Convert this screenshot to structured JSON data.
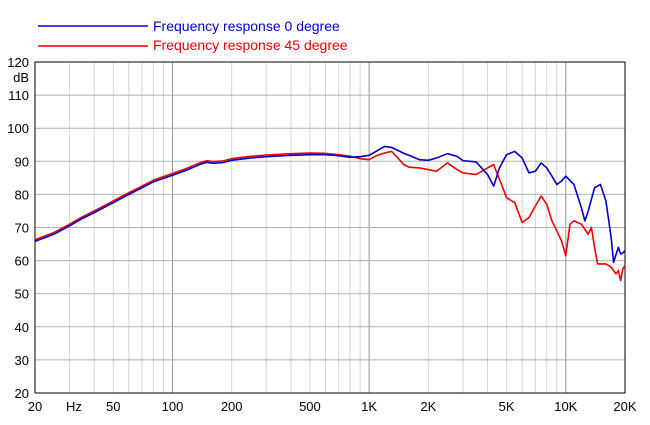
{
  "chart_data": {
    "type": "line",
    "xscale": "log",
    "xlim": [
      20,
      20000
    ],
    "ylim": [
      20,
      120
    ],
    "grid": true,
    "ylabel": "dB",
    "xunit_label": "Hz",
    "xticks": [
      {
        "value": 20,
        "label": "20"
      },
      {
        "value": 50,
        "label": "50"
      },
      {
        "value": 100,
        "label": "100"
      },
      {
        "value": 200,
        "label": "200"
      },
      {
        "value": 500,
        "label": "500"
      },
      {
        "value": 1000,
        "label": "1K"
      },
      {
        "value": 2000,
        "label": "2K"
      },
      {
        "value": 5000,
        "label": "5K"
      },
      {
        "value": 10000,
        "label": "10K"
      },
      {
        "value": 20000,
        "label": "20K"
      }
    ],
    "yticks": [
      20,
      30,
      40,
      50,
      60,
      70,
      80,
      90,
      100,
      110,
      120
    ],
    "legend_position": "top-left",
    "series": [
      {
        "name": "Frequency response 0 degree",
        "color": "#0000cc",
        "points": [
          [
            20,
            65.8
          ],
          [
            25,
            68
          ],
          [
            30,
            70.5
          ],
          [
            35,
            72.8
          ],
          [
            40,
            74.5
          ],
          [
            50,
            77.5
          ],
          [
            60,
            80
          ],
          [
            70,
            82
          ],
          [
            80,
            83.8
          ],
          [
            100,
            85.8
          ],
          [
            120,
            87.5
          ],
          [
            140,
            89.2
          ],
          [
            150,
            89.7
          ],
          [
            160,
            89.4
          ],
          [
            180,
            89.6
          ],
          [
            200,
            90.3
          ],
          [
            250,
            91
          ],
          [
            300,
            91.4
          ],
          [
            400,
            91.8
          ],
          [
            500,
            92
          ],
          [
            600,
            92
          ],
          [
            700,
            91.7
          ],
          [
            800,
            91.2
          ],
          [
            900,
            91.4
          ],
          [
            1000,
            91.8
          ],
          [
            1100,
            93.2
          ],
          [
            1200,
            94.5
          ],
          [
            1300,
            94.2
          ],
          [
            1400,
            93.3
          ],
          [
            1500,
            92.4
          ],
          [
            1600,
            91.8
          ],
          [
            1800,
            90.5
          ],
          [
            2000,
            90.3
          ],
          [
            2200,
            91
          ],
          [
            2500,
            92.3
          ],
          [
            2800,
            91.5
          ],
          [
            3000,
            90.2
          ],
          [
            3500,
            89.8
          ],
          [
            4000,
            86
          ],
          [
            4300,
            82.5
          ],
          [
            4600,
            88
          ],
          [
            5000,
            92
          ],
          [
            5500,
            93
          ],
          [
            6000,
            91
          ],
          [
            6500,
            86.5
          ],
          [
            7000,
            87
          ],
          [
            7500,
            89.5
          ],
          [
            8000,
            88
          ],
          [
            8500,
            85.5
          ],
          [
            9000,
            83
          ],
          [
            9500,
            84
          ],
          [
            10000,
            85.5
          ],
          [
            11000,
            83
          ],
          [
            12000,
            76
          ],
          [
            12500,
            72
          ],
          [
            13000,
            75
          ],
          [
            14000,
            82
          ],
          [
            15000,
            83
          ],
          [
            16000,
            78
          ],
          [
            17000,
            67
          ],
          [
            17500,
            59.5
          ],
          [
            18500,
            64
          ],
          [
            19000,
            62
          ],
          [
            19500,
            62.3
          ],
          [
            20000,
            63
          ]
        ]
      },
      {
        "name": "Frequency response 45 degree",
        "color": "#ee0000",
        "points": [
          [
            20,
            66.3
          ],
          [
            25,
            68.5
          ],
          [
            30,
            71
          ],
          [
            35,
            73.3
          ],
          [
            40,
            75
          ],
          [
            50,
            78
          ],
          [
            60,
            80.5
          ],
          [
            70,
            82.5
          ],
          [
            80,
            84.3
          ],
          [
            100,
            86.3
          ],
          [
            120,
            88
          ],
          [
            140,
            89.7
          ],
          [
            150,
            90.2
          ],
          [
            160,
            89.9
          ],
          [
            180,
            90.1
          ],
          [
            200,
            90.8
          ],
          [
            250,
            91.5
          ],
          [
            300,
            91.9
          ],
          [
            400,
            92.3
          ],
          [
            500,
            92.5
          ],
          [
            600,
            92.4
          ],
          [
            700,
            92
          ],
          [
            800,
            91.5
          ],
          [
            900,
            90.8
          ],
          [
            1000,
            90.5
          ],
          [
            1100,
            91.8
          ],
          [
            1200,
            92.5
          ],
          [
            1300,
            93
          ],
          [
            1400,
            91
          ],
          [
            1500,
            89
          ],
          [
            1600,
            88.2
          ],
          [
            1800,
            88
          ],
          [
            2000,
            87.5
          ],
          [
            2200,
            87
          ],
          [
            2500,
            89.5
          ],
          [
            2800,
            87.5
          ],
          [
            3000,
            86.5
          ],
          [
            3500,
            86
          ],
          [
            4000,
            88
          ],
          [
            4300,
            89
          ],
          [
            4500,
            86
          ],
          [
            5000,
            79
          ],
          [
            5500,
            77.5
          ],
          [
            6000,
            71.5
          ],
          [
            6500,
            73
          ],
          [
            7000,
            76.5
          ],
          [
            7500,
            79.5
          ],
          [
            8000,
            77
          ],
          [
            8500,
            72
          ],
          [
            9000,
            69
          ],
          [
            9500,
            66
          ],
          [
            10000,
            61.5
          ],
          [
            10500,
            71
          ],
          [
            11000,
            72
          ],
          [
            12000,
            71
          ],
          [
            13000,
            68
          ],
          [
            13500,
            70
          ],
          [
            14000,
            64
          ],
          [
            14500,
            59
          ],
          [
            16000,
            59
          ],
          [
            17000,
            58
          ],
          [
            18000,
            56
          ],
          [
            18500,
            57
          ],
          [
            19000,
            54
          ],
          [
            19500,
            57.5
          ],
          [
            20000,
            58.5
          ]
        ]
      }
    ]
  }
}
